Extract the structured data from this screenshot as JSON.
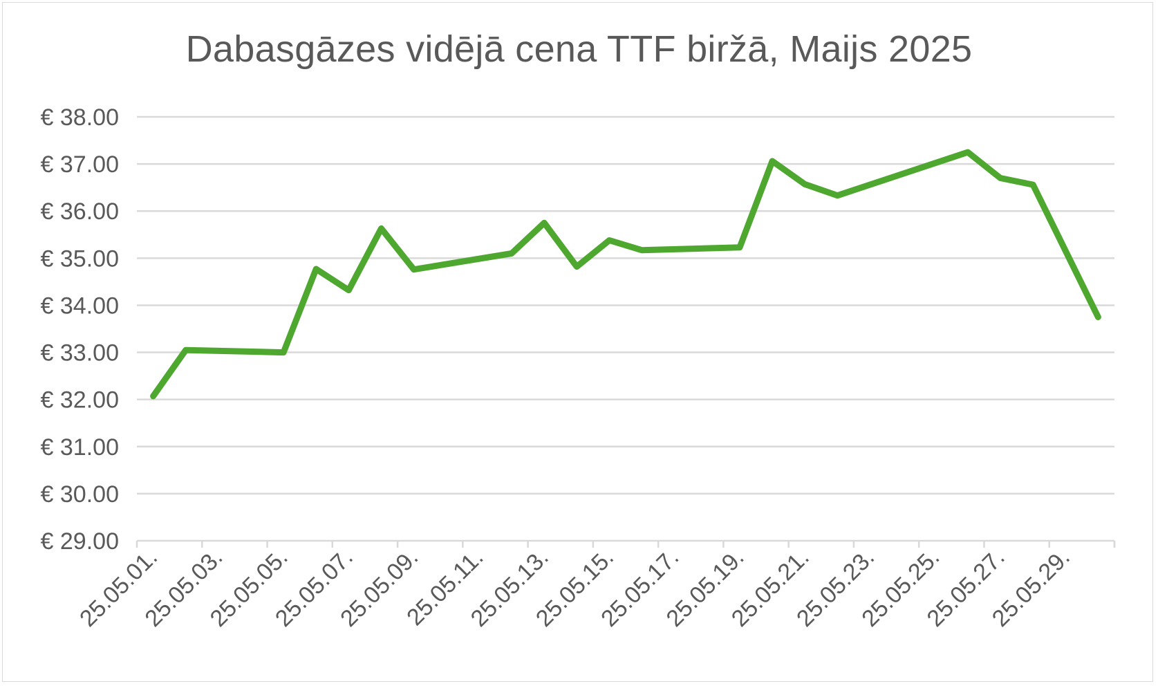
{
  "chart_data": {
    "type": "line",
    "title": "Dabasgāzes vidējā cena TTF biržā, Maijs 2025",
    "xlabel": "",
    "ylabel": "",
    "ylim": [
      29,
      38
    ],
    "ytick_values": [
      29,
      30,
      31,
      32,
      33,
      34,
      35,
      36,
      37,
      38
    ],
    "ytick_labels": [
      "€ 29.00",
      "€ 30.00",
      "€ 31.00",
      "€ 32.00",
      "€ 33.00",
      "€ 34.00",
      "€ 35.00",
      "€ 36.00",
      "€ 37.00",
      "€ 38.00"
    ],
    "xtick_labels": [
      "25.05.01.",
      "25.05.03.",
      "25.05.05.",
      "25.05.07.",
      "25.05.09.",
      "25.05.11.",
      "25.05.13.",
      "25.05.15.",
      "25.05.17.",
      "25.05.19.",
      "25.05.21.",
      "25.05.23.",
      "25.05.25.",
      "25.05.27.",
      "25.05.29."
    ],
    "grid": true,
    "legend": "none",
    "series": [
      {
        "color": "#4ea72e",
        "points": [
          {
            "x": 1,
            "y": 32.07
          },
          {
            "x": 2,
            "y": 33.05
          },
          {
            "x": 5,
            "y": 33.0
          },
          {
            "x": 6,
            "y": 34.77
          },
          {
            "x": 7,
            "y": 34.32
          },
          {
            "x": 8,
            "y": 35.63
          },
          {
            "x": 9,
            "y": 34.76
          },
          {
            "x": 12,
            "y": 35.1
          },
          {
            "x": 13,
            "y": 35.75
          },
          {
            "x": 14,
            "y": 34.82
          },
          {
            "x": 15,
            "y": 35.38
          },
          {
            "x": 16,
            "y": 35.17
          },
          {
            "x": 19,
            "y": 35.23
          },
          {
            "x": 20,
            "y": 37.06
          },
          {
            "x": 21,
            "y": 36.57
          },
          {
            "x": 22,
            "y": 36.33
          },
          {
            "x": 26,
            "y": 37.25
          },
          {
            "x": 27,
            "y": 36.7
          },
          {
            "x": 28,
            "y": 36.56
          },
          {
            "x": 30,
            "y": 33.75
          }
        ]
      }
    ],
    "colors": {
      "line": "#4ea72e",
      "grid": "#d9d9d9",
      "text": "#595959",
      "axis": "#d9d9d9"
    }
  }
}
